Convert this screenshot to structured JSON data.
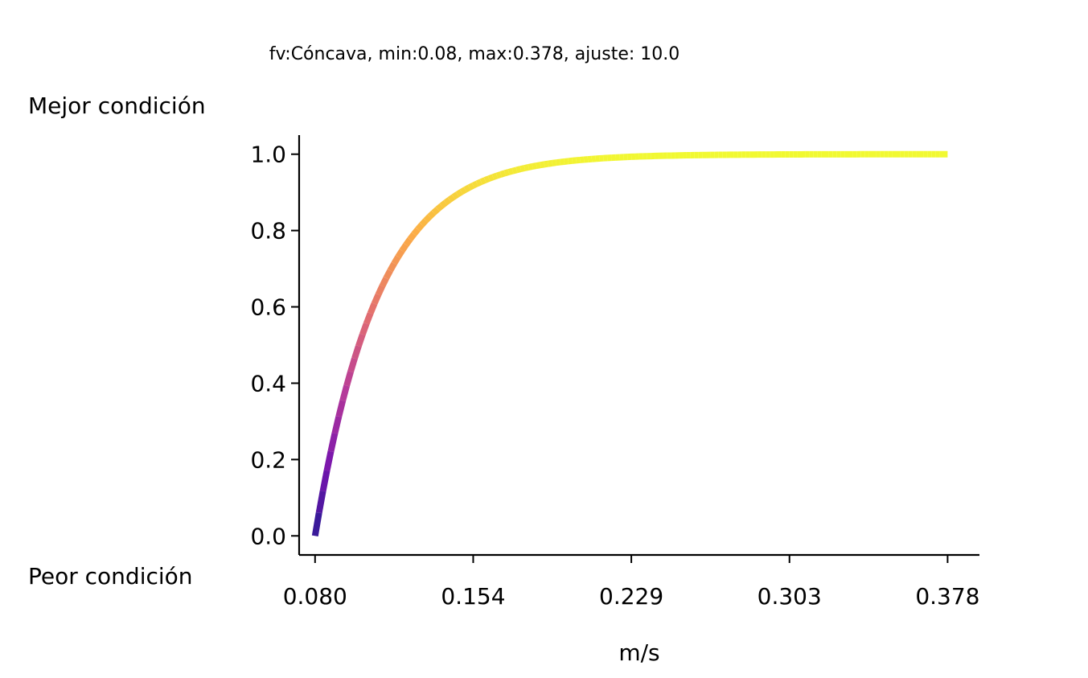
{
  "chart_data": {
    "type": "line",
    "title": "fv:Cóncava, min:0.08, max:0.378, ajuste: 10.0",
    "xlabel": "m/s",
    "ylabel_top": "Mejor condición",
    "ylabel_bottom": "Peor condición",
    "xlim": [
      0.0725,
      0.393
    ],
    "ylim": [
      -0.05,
      1.05
    ],
    "x_ticks": [
      {
        "value": 0.08,
        "label": "0.080"
      },
      {
        "value": 0.1545,
        "label": "0.154"
      },
      {
        "value": 0.229,
        "label": "0.229"
      },
      {
        "value": 0.3035,
        "label": "0.303"
      },
      {
        "value": 0.378,
        "label": "0.378"
      }
    ],
    "y_ticks": [
      {
        "value": 0.0,
        "label": "0.0"
      },
      {
        "value": 0.2,
        "label": "0.2"
      },
      {
        "value": 0.4,
        "label": "0.4"
      },
      {
        "value": 0.6,
        "label": "0.6"
      },
      {
        "value": 0.8,
        "label": "0.8"
      },
      {
        "value": 1.0,
        "label": "1.0"
      }
    ],
    "x_min": 0.08,
    "x_max": 0.378,
    "curve_rate": 10.0,
    "colormap": [
      "#0d0887",
      "#6a00a8",
      "#b12a90",
      "#e16462",
      "#fca636",
      "#f0f921"
    ],
    "axis_color": "#000000",
    "grid": false,
    "spines": [
      "left",
      "bottom"
    ]
  }
}
